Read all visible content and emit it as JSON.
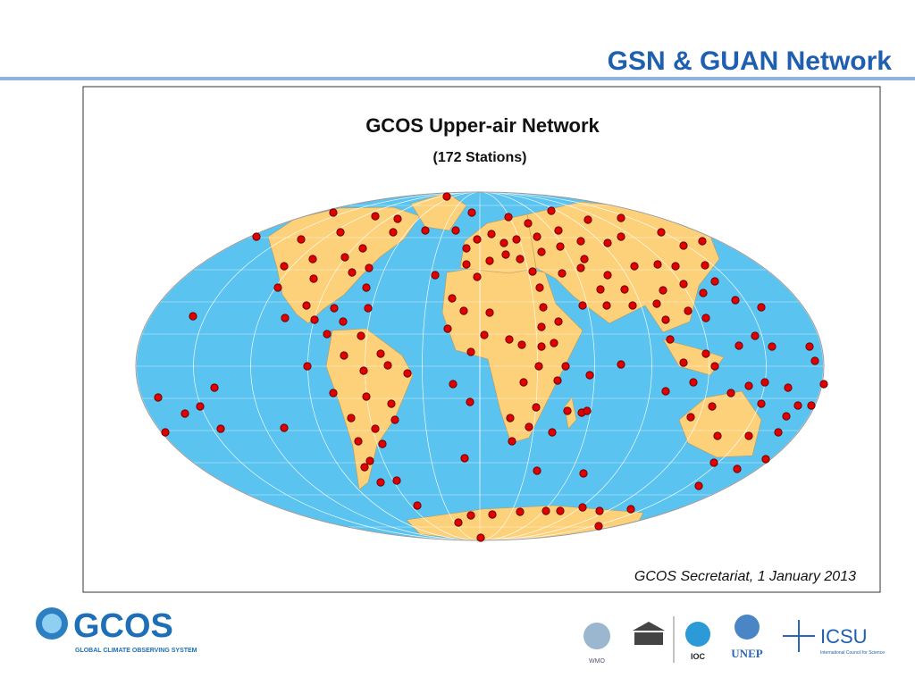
{
  "header": {
    "title": "GSN & GUAN Network"
  },
  "map": {
    "title": "GCOS Upper-air Network",
    "subtitle": "(172 Stations)",
    "credit": "GCOS Secretariat, 1 January 2013"
  },
  "footer": {
    "brand": "GCOS",
    "brand_tagline": "GLOBAL CLIMATE OBSERVING SYSTEM",
    "logos": [
      "WMO",
      "IOC",
      "UNEP",
      "ICSU"
    ],
    "icsu_tagline": "International Council for Science"
  }
}
